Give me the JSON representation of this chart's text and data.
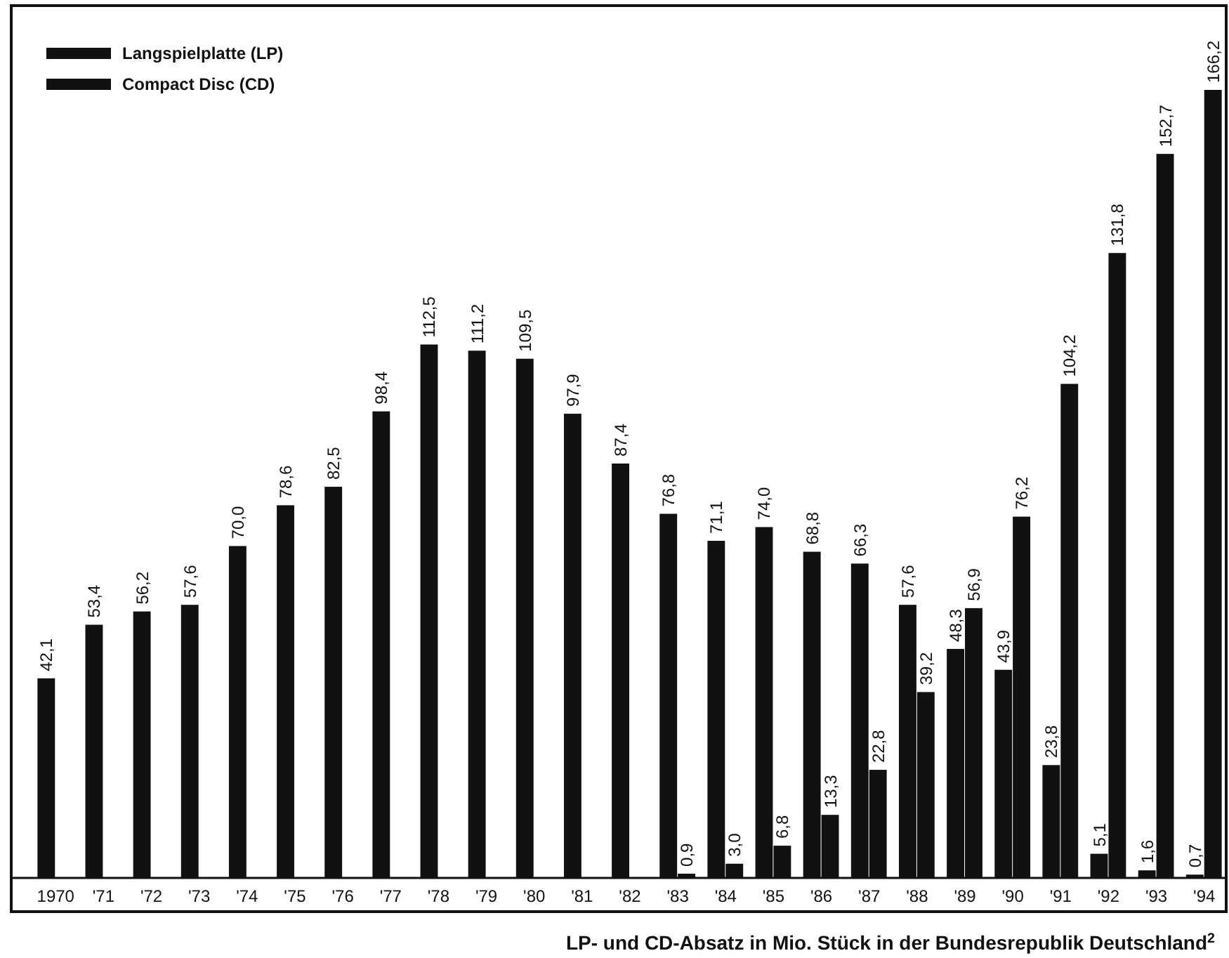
{
  "chart_data": {
    "type": "bar",
    "title": "LP- und CD-Absatz in Mio. Stück in der Bundesrepublik Deutschland$^{2}$",
    "categories": [
      "1970",
      "'71",
      "'72",
      "'73",
      "'74",
      "'75",
      "'76",
      "'77",
      "'78",
      "'79",
      "'80",
      "'81",
      "'82",
      "'83",
      "'84",
      "'85",
      "'86",
      "'87",
      "'88",
      "'89",
      "'90",
      "'91",
      "'92",
      "'93",
      "'94"
    ],
    "series": [
      {
        "name": "Langspielplatte (LP)",
        "color": "#111111",
        "values": [
          42.1,
          53.4,
          56.2,
          57.6,
          70.0,
          78.6,
          82.5,
          98.4,
          112.5,
          111.2,
          109.5,
          97.9,
          87.4,
          76.8,
          71.1,
          74.0,
          68.8,
          66.3,
          57.6,
          48.3,
          43.9,
          23.8,
          5.1,
          1.6,
          0.7
        ],
        "value_labels": [
          "42,1",
          "53,4",
          "56,2",
          "57,6",
          "70,0",
          "78,6",
          "82,5",
          "98,4",
          "112,5",
          "111,2",
          "109,5",
          "97,9",
          "87,4",
          "76,8",
          "71,1",
          "74,0",
          "68,8",
          "66,3",
          "57,6",
          "48,3",
          "43,9",
          "23,8",
          "5,1",
          "1,6",
          "0,7"
        ]
      },
      {
        "name": "Compact Disc (CD)",
        "color": "#111111",
        "values": [
          null,
          null,
          null,
          null,
          null,
          null,
          null,
          null,
          null,
          null,
          null,
          null,
          null,
          0.9,
          3.0,
          6.8,
          13.3,
          22.8,
          39.2,
          56.9,
          76.2,
          104.2,
          131.8,
          152.7,
          166.2
        ],
        "value_labels": [
          null,
          null,
          null,
          null,
          null,
          null,
          null,
          null,
          null,
          null,
          null,
          null,
          null,
          "0,9",
          "3,0",
          "6,8",
          "13,3",
          "22,8",
          "39,2",
          "56,9",
          "76,2",
          "104,2",
          "131,8",
          "152,7",
          "166,2"
        ]
      }
    ],
    "legend": "top left",
    "grid": false
  }
}
